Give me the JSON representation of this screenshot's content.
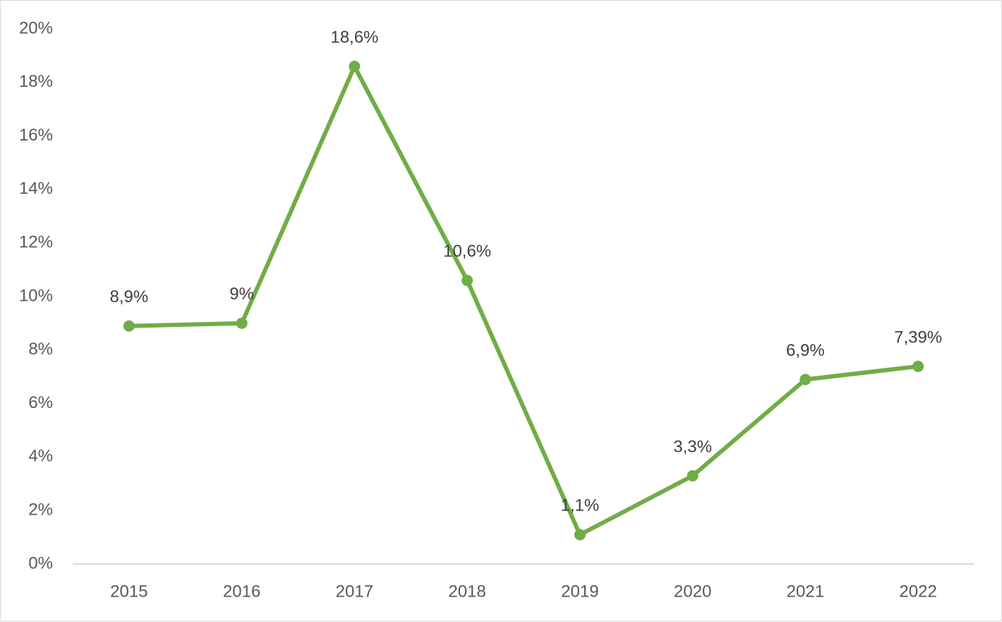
{
  "chart_data": {
    "type": "line",
    "title": "",
    "xlabel": "",
    "ylabel": "",
    "categories": [
      "2015",
      "2016",
      "2017",
      "2018",
      "2019",
      "2020",
      "2021",
      "2022"
    ],
    "series": [
      {
        "values": [
          8.9,
          9.0,
          18.6,
          10.6,
          1.1,
          3.3,
          6.9,
          7.39
        ],
        "data_labels": [
          "8,9%",
          "9%",
          "18,6%",
          "10,6%",
          "1,1%",
          "3,3%",
          "6,9%",
          "7,39%"
        ],
        "color": "#70ad47"
      }
    ],
    "ylim": [
      0,
      20
    ],
    "yticks": [
      0,
      2,
      4,
      6,
      8,
      10,
      12,
      14,
      16,
      18,
      20
    ],
    "ytick_labels": [
      "0%",
      "2%",
      "4%",
      "6%",
      "8%",
      "10%",
      "12%",
      "14%",
      "16%",
      "18%",
      "20%"
    ],
    "grid": false,
    "legend": "none",
    "colors": {
      "axis": "#d9d9d9",
      "tick_text": "#595959",
      "label_text": "#404040"
    }
  }
}
